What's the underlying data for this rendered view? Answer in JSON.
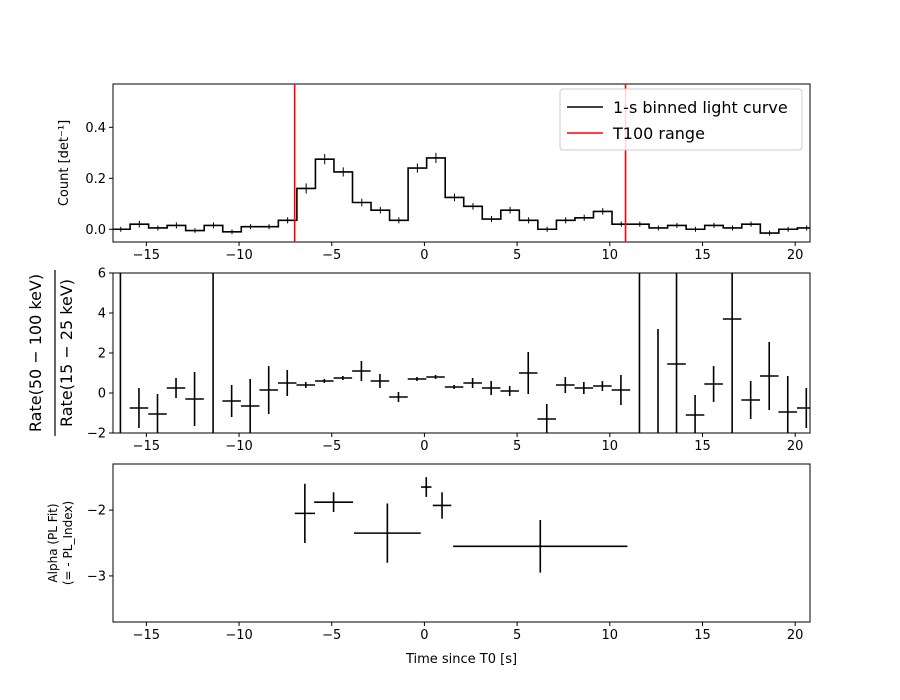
{
  "figure": {
    "xlabel": "Time since T0 [s]",
    "xlim": [
      -16.8,
      20.8
    ],
    "xticks": [
      -15,
      -10,
      -5,
      0,
      5,
      10,
      15,
      20
    ]
  },
  "chart_data": [
    {
      "type": "line",
      "panel": "light-curve",
      "ylabel": "Count [det⁻¹]",
      "ylim": [
        -0.05,
        0.57
      ],
      "yticks": [
        0.0,
        0.2,
        0.4
      ],
      "ytick_labels": [
        "0.0",
        "0.2",
        "0.4"
      ],
      "grid": false,
      "legend_position": "top-right",
      "legend": [
        {
          "label": "1-s binned light curve",
          "color": "#000000"
        },
        {
          "label": "T100 range",
          "color": "#ff0000"
        }
      ],
      "t100_range": [
        -7.0,
        10.85
      ],
      "bin_width": 1.0,
      "bin_starts": [
        -16.88,
        -15.88,
        -14.88,
        -13.88,
        -12.88,
        -11.88,
        -10.88,
        -9.88,
        -8.88,
        -7.88,
        -6.88,
        -5.88,
        -4.88,
        -3.88,
        -2.88,
        -1.88,
        -0.88,
        0.12,
        1.12,
        2.12,
        3.12,
        4.12,
        5.12,
        6.12,
        7.12,
        8.12,
        9.12,
        10.12,
        11.12,
        12.12,
        13.12,
        14.12,
        15.12,
        16.12,
        17.12,
        18.12,
        19.12,
        20.12
      ],
      "values": [
        0.0,
        0.02,
        0.005,
        0.015,
        -0.005,
        0.015,
        -0.01,
        0.01,
        0.01,
        0.035,
        0.16,
        0.275,
        0.225,
        0.105,
        0.075,
        0.035,
        0.24,
        0.28,
        0.125,
        0.09,
        0.04,
        0.075,
        0.035,
        0.0,
        0.035,
        0.045,
        0.07,
        0.02,
        0.02,
        0.005,
        0.015,
        0.0,
        0.015,
        0.005,
        0.02,
        -0.015,
        0.0,
        0.005
      ],
      "errors": [
        0.01,
        0.013,
        0.01,
        0.012,
        0.009,
        0.012,
        0.009,
        0.01,
        0.01,
        0.012,
        0.02,
        0.02,
        0.018,
        0.015,
        0.013,
        0.012,
        0.018,
        0.02,
        0.015,
        0.013,
        0.012,
        0.013,
        0.012,
        0.01,
        0.012,
        0.012,
        0.013,
        0.01,
        0.01,
        0.01,
        0.01,
        0.01,
        0.01,
        0.01,
        0.01,
        0.01,
        0.01,
        0.01
      ]
    },
    {
      "type": "scatter",
      "panel": "hardness-ratio",
      "ylabel_numerator": "Rate(50 − 100 keV)",
      "ylabel_denominator": "Rate(15 − 25 keV)",
      "ylim": [
        -2,
        6
      ],
      "yticks": [
        -2,
        0,
        2,
        4,
        6
      ],
      "ytick_labels": [
        "−2",
        "0",
        "2",
        "4",
        "6"
      ],
      "points": [
        {
          "x": -16.4,
          "y": 2.0,
          "xerr": 0.0,
          "yerr": 10.0
        },
        {
          "x": -15.4,
          "y": -0.75,
          "xerr": 0.5,
          "yerr": 1.0
        },
        {
          "x": -14.4,
          "y": -1.05,
          "xerr": 0.5,
          "yerr": 1.0
        },
        {
          "x": -13.4,
          "y": 0.25,
          "xerr": 0.5,
          "yerr": 0.5
        },
        {
          "x": -12.4,
          "y": -0.3,
          "xerr": 0.5,
          "yerr": 1.35
        },
        {
          "x": -11.4,
          "y": 2.0,
          "xerr": 0.0,
          "yerr": 10.0
        },
        {
          "x": -10.4,
          "y": -0.4,
          "xerr": 0.5,
          "yerr": 0.8
        },
        {
          "x": -9.4,
          "y": -0.65,
          "xerr": 0.5,
          "yerr": 1.35
        },
        {
          "x": -8.4,
          "y": 0.15,
          "xerr": 0.5,
          "yerr": 1.2
        },
        {
          "x": -7.4,
          "y": 0.5,
          "xerr": 0.5,
          "yerr": 0.65
        },
        {
          "x": -6.4,
          "y": 0.4,
          "xerr": 0.5,
          "yerr": 0.15
        },
        {
          "x": -5.4,
          "y": 0.6,
          "xerr": 0.5,
          "yerr": 0.1
        },
        {
          "x": -4.4,
          "y": 0.75,
          "xerr": 0.5,
          "yerr": 0.1
        },
        {
          "x": -3.4,
          "y": 1.1,
          "xerr": 0.5,
          "yerr": 0.5
        },
        {
          "x": -2.4,
          "y": 0.6,
          "xerr": 0.5,
          "yerr": 0.35
        },
        {
          "x": -1.4,
          "y": -0.2,
          "xerr": 0.5,
          "yerr": 0.25
        },
        {
          "x": -0.4,
          "y": 0.7,
          "xerr": 0.5,
          "yerr": 0.1
        },
        {
          "x": 0.6,
          "y": 0.8,
          "xerr": 0.5,
          "yerr": 0.1
        },
        {
          "x": 1.6,
          "y": 0.3,
          "xerr": 0.5,
          "yerr": 0.1
        },
        {
          "x": 2.6,
          "y": 0.5,
          "xerr": 0.5,
          "yerr": 0.25
        },
        {
          "x": 3.6,
          "y": 0.25,
          "xerr": 0.5,
          "yerr": 0.35
        },
        {
          "x": 4.6,
          "y": 0.1,
          "xerr": 0.5,
          "yerr": 0.25
        },
        {
          "x": 5.6,
          "y": 1.0,
          "xerr": 0.5,
          "yerr": 1.05
        },
        {
          "x": 6.6,
          "y": -1.3,
          "xerr": 0.5,
          "yerr": 0.75
        },
        {
          "x": 7.6,
          "y": 0.4,
          "xerr": 0.5,
          "yerr": 0.4
        },
        {
          "x": 8.6,
          "y": 0.25,
          "xerr": 0.5,
          "yerr": 0.3
        },
        {
          "x": 9.6,
          "y": 0.35,
          "xerr": 0.5,
          "yerr": 0.25
        },
        {
          "x": 10.6,
          "y": 0.15,
          "xerr": 0.5,
          "yerr": 0.75
        },
        {
          "x": 11.6,
          "y": 2.0,
          "xerr": 0.0,
          "yerr": 10.0
        },
        {
          "x": 12.6,
          "y": 0.6,
          "xerr": 0.0,
          "yerr": 2.6
        },
        {
          "x": 13.6,
          "y": 1.45,
          "xerr": 0.5,
          "yerr": 10.0
        },
        {
          "x": 14.6,
          "y": -1.1,
          "xerr": 0.5,
          "yerr": 1.0
        },
        {
          "x": 15.6,
          "y": 0.45,
          "xerr": 0.5,
          "yerr": 0.9
        },
        {
          "x": 16.6,
          "y": 3.7,
          "xerr": 0.5,
          "yerr": 10.0
        },
        {
          "x": 17.6,
          "y": -0.35,
          "xerr": 0.5,
          "yerr": 0.95
        },
        {
          "x": 18.6,
          "y": 0.85,
          "xerr": 0.5,
          "yerr": 1.7
        },
        {
          "x": 19.6,
          "y": -0.95,
          "xerr": 0.5,
          "yerr": 1.8
        },
        {
          "x": 20.6,
          "y": -0.75,
          "xerr": 0.5,
          "yerr": 1.0
        }
      ]
    },
    {
      "type": "scatter",
      "panel": "spectral-index",
      "ylabel_line1": "Alpha (PL Fit)",
      "ylabel_line2": "(= - PL_Index)",
      "ylim": [
        -3.7,
        -1.3
      ],
      "yticks": [
        -2,
        -3
      ],
      "ytick_labels": [
        "−2",
        "−3"
      ],
      "points": [
        {
          "x": -6.45,
          "y": -2.05,
          "xerr": 0.55,
          "yerr": 0.45
        },
        {
          "x": -4.9,
          "y": -1.88,
          "xerr": 1.05,
          "yerr": 0.15
        },
        {
          "x": -2.0,
          "y": -2.35,
          "xerr": 1.8,
          "yerr": 0.45
        },
        {
          "x": 0.1,
          "y": -1.65,
          "xerr": 0.28,
          "yerr": 0.15
        },
        {
          "x": 0.95,
          "y": -1.93,
          "xerr": 0.5,
          "yerr": 0.2
        },
        {
          "x": 6.25,
          "y": -2.55,
          "xerr": 4.7,
          "yerr": 0.4
        }
      ]
    }
  ]
}
